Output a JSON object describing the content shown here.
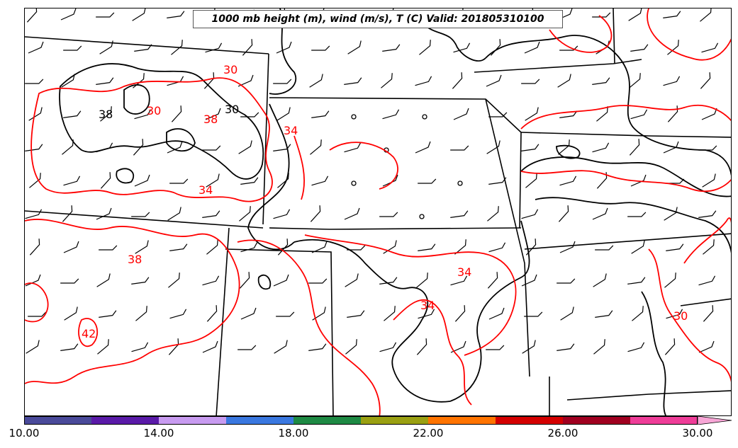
{
  "title": "1000 mb height (m), wind (m/s), T (C) Valid: 201805310100",
  "colorbar": {
    "colors": [
      "#4a4a9a",
      "#5a1aa8",
      "#c89bf0",
      "#3a78e0",
      "#1e8a44",
      "#9aa012",
      "#ff7400",
      "#d40000",
      "#a00020",
      "#ee3d98",
      "#f7a6d6"
    ],
    "ticks": [
      "10.00",
      "14.00",
      "18.00",
      "22.00",
      "26.00",
      "30.00"
    ]
  },
  "contour_labels": {
    "black": [
      "30",
      "38"
    ],
    "red": [
      "30",
      "30",
      "38",
      "34",
      "34",
      "34",
      "38",
      "42",
      "34",
      "30"
    ]
  },
  "colors": {
    "boundary": "#000000",
    "temperature": "#ff0000",
    "height": "#000000"
  }
}
